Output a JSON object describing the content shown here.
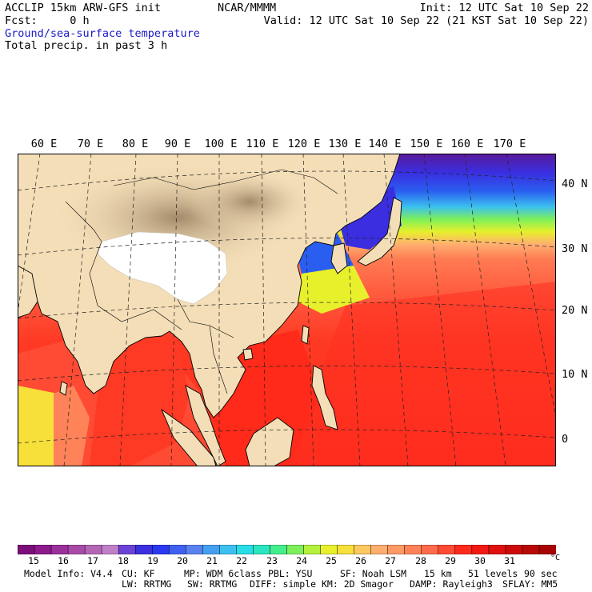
{
  "header": {
    "model_title": "ACCLIP 15km ARW-GFS init",
    "org": "NCAR/MMMM",
    "init": "Init: 12 UTC Sat 10 Sep 22",
    "fcst": "Fcst:     0 h",
    "valid": "Valid: 12 UTC Sat 10 Sep 22 (21 KST Sat 10 Sep 22)",
    "field1": "Ground/sea-surface temperature",
    "field2": "Total precip. in past 3 h"
  },
  "colors": {
    "field1": "#1c1cc8",
    "land": "#f3deb7",
    "mountain": "#b39b7a",
    "snow": "#ffffff",
    "water_warm": "#ff2a1a"
  },
  "map": {
    "lon_labels": [
      "60 E",
      "70 E",
      "80 E",
      "90 E",
      "100 E",
      "110 E",
      "120 E",
      "130 E",
      "140 E",
      "150 E",
      "160 E",
      "170 E"
    ],
    "lat_labels": [
      "40 N",
      "30 N",
      "20 N",
      "10 N",
      "0"
    ]
  },
  "colorbar": {
    "unit": "°C",
    "labels": [
      "15",
      "16",
      "17",
      "18",
      "19",
      "20",
      "21",
      "22",
      "23",
      "24",
      "25",
      "26",
      "27",
      "28",
      "29",
      "30",
      "31"
    ],
    "colors": [
      "#7b0e7a",
      "#8c1a8c",
      "#9b2f9b",
      "#a84aa8",
      "#b466b6",
      "#c080c8",
      "#6b43d6",
      "#3b2fe0",
      "#2a38f0",
      "#4060f0",
      "#5a82ee",
      "#46a0f2",
      "#3cc0f0",
      "#28dce8",
      "#2ae6c0",
      "#44ee8c",
      "#7cf05a",
      "#b4f03c",
      "#e8f02c",
      "#f8e03a",
      "#ffc860",
      "#ffae70",
      "#ff9a66",
      "#ff8258",
      "#ff6a4a",
      "#ff4a34",
      "#ff2a1a",
      "#f21814",
      "#e01010",
      "#cc0a0a",
      "#b80808",
      "#a80404"
    ]
  },
  "model_info": {
    "line1": [
      "Model Info: V4.4",
      "CU: KF",
      "MP: WDM 6class",
      "PBL: YSU",
      "SF: Noah LSM",
      "15 km",
      "51 levels",
      "90 sec"
    ],
    "line2": [
      "LW: RRTMG",
      "SW: RRTMG",
      "DIFF: simple",
      "KM: 2D Smagor",
      "DAMP: Rayleigh3",
      "SFLAY: MM5"
    ]
  }
}
